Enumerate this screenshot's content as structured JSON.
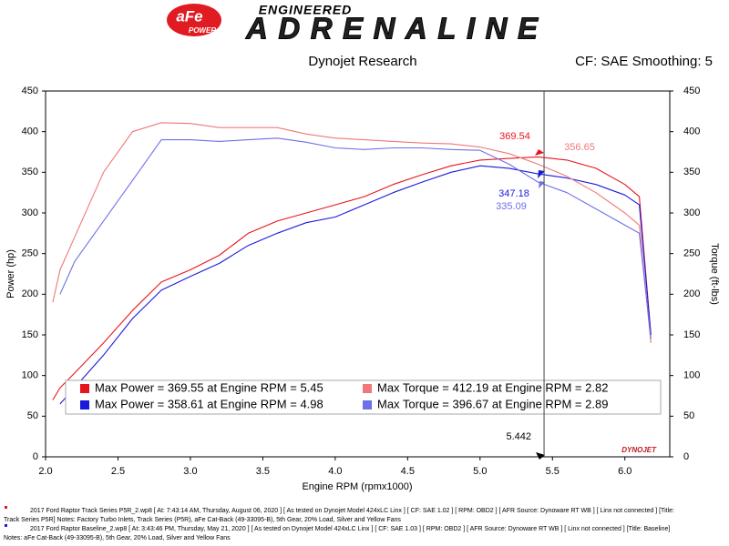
{
  "chart_data": {
    "type": "line",
    "brand": [
      "aFe",
      "POWER"
    ],
    "heading": [
      "ENGINEERED",
      "ADRENALINE"
    ],
    "subtitle": "Dynojet Research",
    "correction": "CF: SAE Smoothing: 5",
    "x_label": "Engine RPM (rpmx1000)",
    "y_label": "Power (hp)",
    "y2_label": "Torque (ft-lbs)",
    "watermark": "DYNOJET",
    "xlim": [
      2.0,
      6.31
    ],
    "xticks": [
      {
        "value": 2,
        "label": "2.0"
      },
      2.5,
      {
        "value": 3,
        "label": "3.0"
      },
      3.5,
      {
        "value": 4,
        "label": "4.0"
      },
      4.5,
      {
        "value": 5,
        "label": "5.0"
      },
      5.5,
      {
        "value": 6,
        "label": "6.0"
      }
    ],
    "ylim": [
      0,
      450
    ],
    "yticks": [
      0,
      50,
      100,
      150,
      200,
      250,
      300,
      350,
      400,
      450
    ],
    "y2lim": [
      0,
      450
    ],
    "y2ticks": [
      0,
      50,
      100,
      150,
      200,
      250,
      300,
      350,
      400,
      450
    ],
    "grid": false,
    "x": [
      2.05,
      2.1,
      2.2,
      2.4,
      2.6,
      2.8,
      3.0,
      3.2,
      3.4,
      3.6,
      3.8,
      4.0,
      4.2,
      4.4,
      4.6,
      4.8,
      5.0,
      5.2,
      5.4,
      5.6,
      5.8,
      6.0,
      6.1,
      6.18
    ],
    "series": [
      {
        "name": "Max Power = 369.55 at Engine RPM = 5.45",
        "color": "#e8141c",
        "values": [
          70,
          85,
          103,
          140,
          180,
          215,
          230,
          248,
          275,
          290,
          300,
          310,
          320,
          335,
          347,
          358,
          365,
          367,
          369,
          365,
          355,
          335,
          320,
          150
        ]
      },
      {
        "name": "Max Power = 358.61 at Engine RPM = 4.98",
        "color": "#1a1adc",
        "values": [
          null,
          65,
          85,
          125,
          170,
          205,
          222,
          238,
          260,
          275,
          288,
          295,
          310,
          325,
          338,
          350,
          358,
          355,
          348,
          343,
          335,
          322,
          310,
          150
        ]
      },
      {
        "name": "Max Torque = 412.19 at Engine RPM = 2.82",
        "color": "#f07878",
        "axis": "y2",
        "values": [
          190,
          230,
          270,
          350,
          400,
          411,
          410,
          405,
          405,
          405,
          397,
          392,
          390,
          388,
          386,
          385,
          381,
          373,
          360,
          345,
          325,
          300,
          285,
          140
        ]
      },
      {
        "name": "Max Torque = 396.67 at Engine RPM = 2.89",
        "color": "#6f6fe8",
        "axis": "y2",
        "values": [
          null,
          200,
          240,
          290,
          340,
          390,
          390,
          388,
          390,
          392,
          387,
          380,
          378,
          380,
          380,
          378,
          377,
          360,
          338,
          325,
          305,
          285,
          275,
          145
        ]
      }
    ],
    "cursor": 5.442,
    "annotations": [
      "369.54",
      "356.65",
      "347.18",
      "335.09"
    ],
    "notes": [
      "2017 Ford Raptor Track Series P5R_2.wp8 [ At: 7:43:14 AM, Thursday, August 06, 2020 ] [ As tested on Dynojet Model 424xLC Linx ] [ CF: SAE 1.02 ] [ RPM: OBD2 ] [ AFR Source: Dynoware RT WB ] [ Linx not connected ] [Title:",
      "Track Series P5R]  Notes: Factory Turbo Inlets, Track Series (P5R), aFe Cat-Back (49-33095-B), 5th Gear, 20% Load, Silver and Yellow Fans",
      "2017 Ford Raptor Baseline_2.wp8 [ At: 3:43:46 PM, Thursday, May 21, 2020 ] [ As tested on Dynojet Model 424xLC Linx ] [ CF: SAE 1.03 ] [ RPM: OBD2 ] [ AFR Source: Dynoware RT WB ] [ Linx not connected ] [Title: Baseline]",
      "Notes: aFe Cat-Back (49-33095-B), 5th Gear, 20% Load, Silver and Yellow Fans"
    ]
  }
}
